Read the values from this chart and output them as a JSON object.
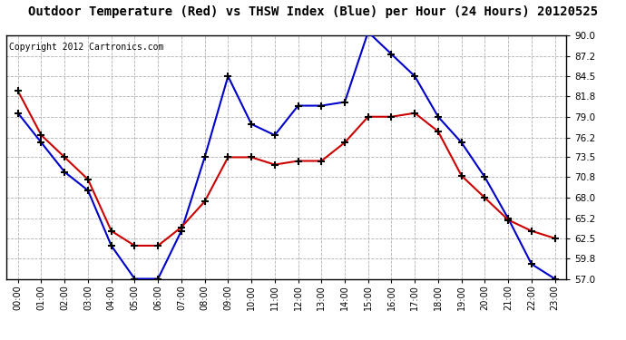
{
  "title": "Outdoor Temperature (Red) vs THSW Index (Blue) per Hour (24 Hours) 20120525",
  "copyright": "Copyright 2012 Cartronics.com",
  "hours": [
    0,
    1,
    2,
    3,
    4,
    5,
    6,
    7,
    8,
    9,
    10,
    11,
    12,
    13,
    14,
    15,
    16,
    17,
    18,
    19,
    20,
    21,
    22,
    23
  ],
  "red_temp": [
    82.5,
    76.5,
    73.5,
    70.5,
    63.5,
    61.5,
    61.5,
    64.0,
    67.5,
    73.5,
    73.5,
    72.5,
    73.0,
    73.0,
    75.5,
    79.0,
    79.0,
    79.5,
    77.0,
    71.0,
    68.0,
    65.0,
    63.5,
    62.5
  ],
  "blue_thsw": [
    79.5,
    75.5,
    71.5,
    69.0,
    61.5,
    57.0,
    57.0,
    63.5,
    73.5,
    84.5,
    78.0,
    76.5,
    80.5,
    80.5,
    81.0,
    90.5,
    87.5,
    84.5,
    79.0,
    75.5,
    70.8,
    65.2,
    59.0,
    57.0
  ],
  "ylim_min": 57.0,
  "ylim_max": 90.0,
  "yticks": [
    57.0,
    59.8,
    62.5,
    65.2,
    68.0,
    70.8,
    73.5,
    76.2,
    79.0,
    81.8,
    84.5,
    87.2,
    90.0
  ],
  "red_color": "#cc0000",
  "blue_color": "#0000cc",
  "bg_color": "#ffffff",
  "grid_color": "#b0b0b0",
  "title_fontsize": 10,
  "copyright_fontsize": 7
}
